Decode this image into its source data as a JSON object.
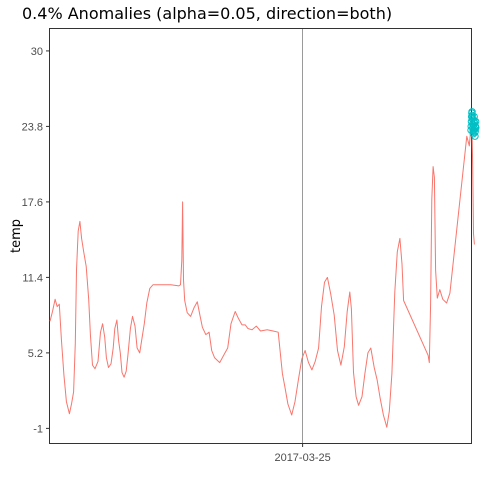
{
  "chart_data": {
    "type": "line",
    "title": "0.4% Anomalies (alpha=0.05, direction=both)",
    "xlabel": "",
    "ylabel": "temp",
    "ylim": [
      -2.2,
      31.8
    ],
    "yticks": [
      -1,
      5.2,
      11.4,
      17.6,
      23.8,
      30
    ],
    "xticks": [
      {
        "x": 60,
        "label": "2017-03-25"
      }
    ],
    "xlim": [
      0,
      100
    ],
    "grid": false,
    "series": [
      {
        "color": "#f8766d",
        "points": [
          [
            0,
            7.8
          ],
          [
            0.6,
            8.6
          ],
          [
            1.2,
            9.6
          ],
          [
            1.7,
            9.0
          ],
          [
            2.2,
            9.2
          ],
          [
            2.7,
            6.3
          ],
          [
            3.3,
            3.4
          ],
          [
            3.9,
            1.2
          ],
          [
            4.6,
            0.2
          ],
          [
            5.1,
            1.0
          ],
          [
            5.6,
            2.0
          ],
          [
            6.0,
            6.0
          ],
          [
            6.3,
            12.0
          ],
          [
            6.7,
            15.2
          ],
          [
            7.1,
            16.0
          ],
          [
            7.5,
            14.6
          ],
          [
            8.0,
            13.5
          ],
          [
            8.6,
            12.3
          ],
          [
            9.2,
            9.6
          ],
          [
            9.6,
            6.7
          ],
          [
            10.1,
            4.2
          ],
          [
            10.7,
            3.9
          ],
          [
            11.4,
            4.5
          ],
          [
            12.0,
            6.9
          ],
          [
            12.5,
            7.6
          ],
          [
            13.0,
            6.5
          ],
          [
            13.4,
            4.8
          ],
          [
            13.9,
            4.0
          ],
          [
            14.5,
            4.3
          ],
          [
            15.0,
            5.6
          ],
          [
            15.4,
            7.2
          ],
          [
            15.9,
            7.9
          ],
          [
            16.3,
            6.2
          ],
          [
            16.7,
            5.2
          ],
          [
            17.1,
            3.6
          ],
          [
            17.6,
            3.2
          ],
          [
            18.1,
            3.7
          ],
          [
            18.5,
            5.0
          ],
          [
            19.1,
            7.2
          ],
          [
            19.6,
            8.2
          ],
          [
            20.2,
            7.4
          ],
          [
            20.7,
            5.6
          ],
          [
            21.3,
            5.2
          ],
          [
            21.8,
            6.3
          ],
          [
            22.4,
            7.6
          ],
          [
            23.0,
            9.3
          ],
          [
            23.7,
            10.5
          ],
          [
            24.5,
            10.8
          ],
          [
            26.5,
            10.8
          ],
          [
            28.7,
            10.8
          ],
          [
            30.6,
            10.7
          ],
          [
            31.0,
            10.8
          ],
          [
            31.3,
            12.8
          ],
          [
            31.5,
            17.6
          ],
          [
            31.7,
            11.2
          ],
          [
            32.0,
            9.5
          ],
          [
            32.6,
            8.5
          ],
          [
            33.4,
            8.2
          ],
          [
            34.2,
            8.9
          ],
          [
            35.0,
            9.4
          ],
          [
            35.6,
            8.3
          ],
          [
            36.2,
            7.3
          ],
          [
            37.0,
            6.7
          ],
          [
            37.8,
            6.9
          ],
          [
            38.4,
            5.4
          ],
          [
            39.1,
            4.8
          ],
          [
            40.3,
            4.4
          ],
          [
            41.4,
            5.1
          ],
          [
            42.2,
            5.6
          ],
          [
            43.0,
            7.6
          ],
          [
            44.0,
            8.6
          ],
          [
            44.8,
            8.0
          ],
          [
            45.6,
            7.5
          ],
          [
            46.4,
            7.5
          ],
          [
            47.0,
            7.2
          ],
          [
            48.0,
            7.1
          ],
          [
            49.0,
            7.4
          ],
          [
            50.0,
            7.0
          ],
          [
            51.6,
            7.1
          ],
          [
            53.0,
            7.0
          ],
          [
            54.2,
            6.9
          ],
          [
            55.2,
            3.5
          ],
          [
            55.8,
            2.4
          ],
          [
            56.5,
            1.0
          ],
          [
            57.4,
            0.1
          ],
          [
            58.2,
            1.2
          ],
          [
            59.0,
            3.0
          ],
          [
            59.8,
            4.7
          ],
          [
            60.6,
            5.4
          ],
          [
            61.4,
            4.4
          ],
          [
            62.2,
            3.8
          ],
          [
            63.0,
            4.5
          ],
          [
            63.8,
            5.6
          ],
          [
            64.5,
            9.0
          ],
          [
            65.2,
            11.0
          ],
          [
            65.9,
            11.4
          ],
          [
            66.7,
            10.0
          ],
          [
            67.5,
            8.3
          ],
          [
            68.3,
            5.4
          ],
          [
            69.1,
            4.2
          ],
          [
            69.9,
            5.7
          ],
          [
            70.6,
            8.6
          ],
          [
            71.2,
            10.2
          ],
          [
            71.6,
            8.8
          ],
          [
            72.1,
            3.6
          ],
          [
            72.7,
            1.6
          ],
          [
            73.3,
            0.9
          ],
          [
            74.1,
            1.6
          ],
          [
            74.8,
            3.5
          ],
          [
            75.5,
            5.2
          ],
          [
            76.2,
            5.6
          ],
          [
            77.0,
            4.0
          ],
          [
            77.7,
            3.0
          ],
          [
            78.4,
            1.5
          ],
          [
            79.2,
            0.1
          ],
          [
            80.0,
            -0.9
          ],
          [
            80.6,
            0.4
          ],
          [
            81.2,
            3.5
          ],
          [
            81.9,
            10.2
          ],
          [
            82.5,
            13.5
          ],
          [
            83.1,
            14.6
          ],
          [
            83.6,
            12.5
          ],
          [
            84.0,
            9.5
          ],
          [
            89.8,
            5.0
          ],
          [
            90.1,
            4.4
          ],
          [
            90.4,
            9.2
          ],
          [
            90.7,
            17.8
          ],
          [
            91.0,
            20.5
          ],
          [
            91.3,
            19.6
          ],
          [
            91.6,
            12.0
          ],
          [
            92.0,
            9.7
          ],
          [
            92.6,
            10.4
          ],
          [
            93.3,
            9.6
          ],
          [
            94.2,
            9.3
          ],
          [
            95.0,
            10.1
          ],
          [
            99.0,
            23.0
          ],
          [
            99.6,
            22.2
          ],
          [
            100.2,
            24.5
          ],
          [
            100.4,
            20.5
          ],
          [
            100.6,
            15.0
          ],
          [
            100.8,
            14.1
          ]
        ]
      },
      {
        "color": "#00bfc4",
        "marker": "open-circle",
        "points": [
          [
            100.0,
            23.5
          ],
          [
            100.05,
            23.8
          ],
          [
            100.1,
            24.2
          ],
          [
            100.15,
            24.6
          ],
          [
            100.2,
            24.9
          ],
          [
            100.25,
            25.0
          ],
          [
            100.3,
            24.7
          ],
          [
            100.35,
            24.4
          ],
          [
            100.4,
            24.0
          ],
          [
            100.45,
            23.7
          ],
          [
            100.5,
            23.4
          ],
          [
            100.55,
            23.2
          ],
          [
            100.6,
            23.5
          ],
          [
            100.65,
            23.9
          ],
          [
            100.7,
            24.3
          ],
          [
            100.75,
            24.6
          ],
          [
            100.8,
            24.1
          ],
          [
            100.85,
            23.6
          ],
          [
            100.9,
            23.3
          ],
          [
            100.95,
            23.0
          ],
          [
            101.0,
            23.4
          ],
          [
            101.05,
            23.8
          ],
          [
            101.1,
            24.2
          ],
          [
            101.15,
            23.7
          ]
        ]
      }
    ]
  }
}
